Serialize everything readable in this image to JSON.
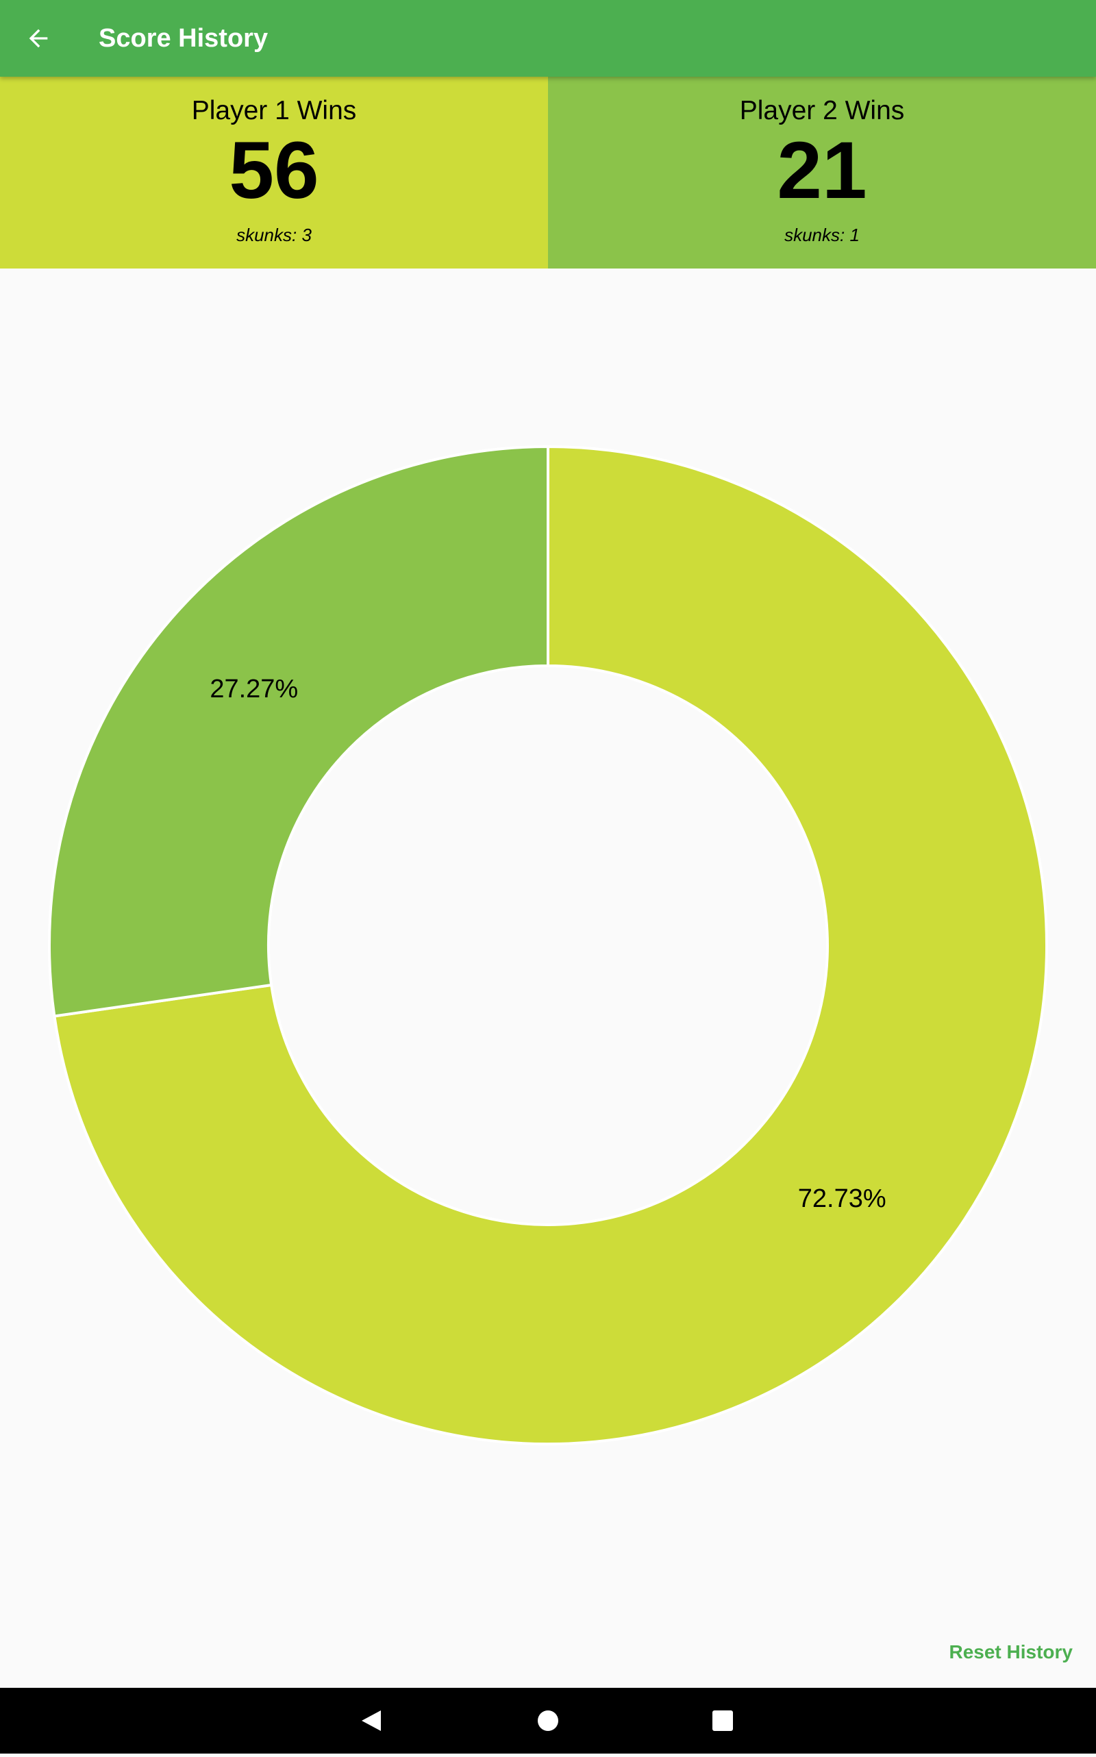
{
  "app_bar": {
    "title": "Score History"
  },
  "players": [
    {
      "label": "Player 1 Wins",
      "wins": "56",
      "skunks": "skunks: 3"
    },
    {
      "label": "Player 2 Wins",
      "wins": "21",
      "skunks": "skunks: 1"
    }
  ],
  "chart_data": {
    "type": "pie",
    "donut": true,
    "values": [
      72.73,
      27.27
    ],
    "value_labels": [
      "72.73%",
      "27.27%"
    ],
    "colors": [
      "#cddc39",
      "#8bc34a"
    ]
  },
  "actions": {
    "reset": "Reset History"
  }
}
